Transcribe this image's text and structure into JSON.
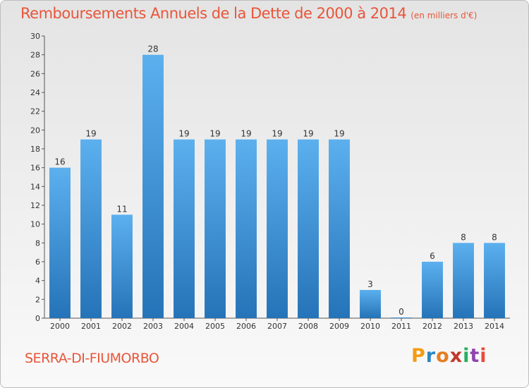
{
  "header": {
    "title": "Remboursements Annuels de la Dette de 2000 à 2014",
    "subtitle": "(en milliers d'€)"
  },
  "footer": {
    "commune": "SERRA-DI-FIUMORBO",
    "logo_letters": [
      "P",
      "r",
      "o",
      "x",
      "i",
      "t",
      "i"
    ],
    "logo_colors": [
      "#f39c12",
      "#2e86c1",
      "#e67e22",
      "#c0392b",
      "#27ae60",
      "#8e44ad",
      "#e74c3c"
    ]
  },
  "chart_data": {
    "type": "bar",
    "title": "Remboursements Annuels de la Dette de 2000 à 2014",
    "subtitle": "(en milliers d'€)",
    "categories": [
      "2000",
      "2001",
      "2002",
      "2003",
      "2004",
      "2005",
      "2006",
      "2007",
      "2008",
      "2009",
      "2010",
      "2011",
      "2012",
      "2013",
      "2014"
    ],
    "values": [
      16,
      19,
      11,
      28,
      19,
      19,
      19,
      19,
      19,
      19,
      3,
      0,
      6,
      8,
      8
    ],
    "xlabel": "",
    "ylabel": "",
    "ylim": [
      0,
      30
    ],
    "yticks": [
      0,
      2,
      4,
      6,
      8,
      10,
      12,
      14,
      16,
      18,
      20,
      22,
      24,
      26,
      28,
      30
    ],
    "grid": false,
    "bar_color": "#3a8fd4"
  }
}
